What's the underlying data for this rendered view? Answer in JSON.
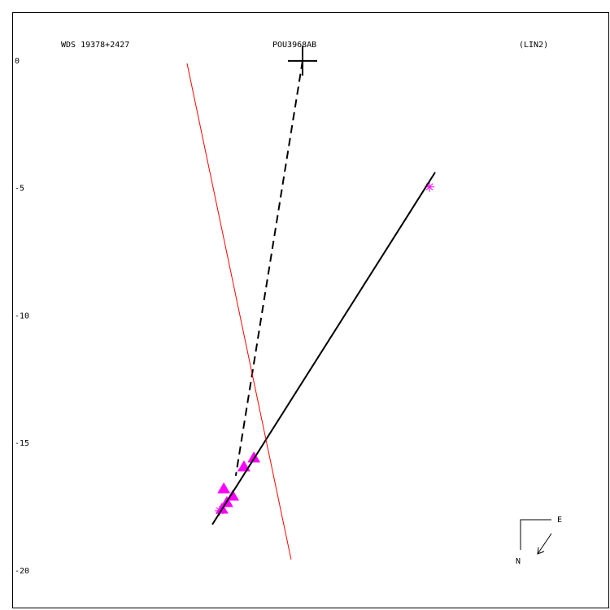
{
  "chart_data": {
    "type": "scatter",
    "title": "WDS 19378+2427",
    "subtitle": "POU3968AB",
    "annotation": "(LIN2)",
    "compass": {
      "east": "E",
      "north": "N"
    },
    "xlim": [
      -11.39,
      12.06
    ],
    "ylim": [
      1.91,
      -21.47
    ],
    "yticks": [
      0,
      -5,
      -10,
      -15,
      -20
    ],
    "series": [
      {
        "marker": "triangle",
        "color": "#ff00ff",
        "x": [
          -3.09,
          -2.74,
          -2.97,
          -2.3,
          -1.91,
          -3.16
        ],
        "y": [
          -16.78,
          -17.07,
          -17.32,
          -15.92,
          -15.57,
          -17.58
        ]
      },
      {
        "marker": "asterisk",
        "color": "#ff00ff",
        "x": [
          4.98,
          -3.25
        ],
        "y": [
          -4.94,
          -17.64
        ]
      },
      {
        "marker": "plus",
        "color": "#000000",
        "x": [
          0
        ],
        "y": [
          0
        ]
      },
      {
        "line": "solid",
        "color": "#000000",
        "x": [
          -3.54,
          5.2
        ],
        "y": [
          -18.18,
          -4.37
        ]
      },
      {
        "line": "dashed",
        "color": "#000000",
        "x": [
          0,
          -2.62
        ],
        "y": [
          0,
          -16.27
        ]
      },
      {
        "line": "solid",
        "color": "#ff0000",
        "x": [
          -4.53,
          -0.45
        ],
        "y": [
          -0.1,
          -19.55
        ]
      }
    ]
  }
}
